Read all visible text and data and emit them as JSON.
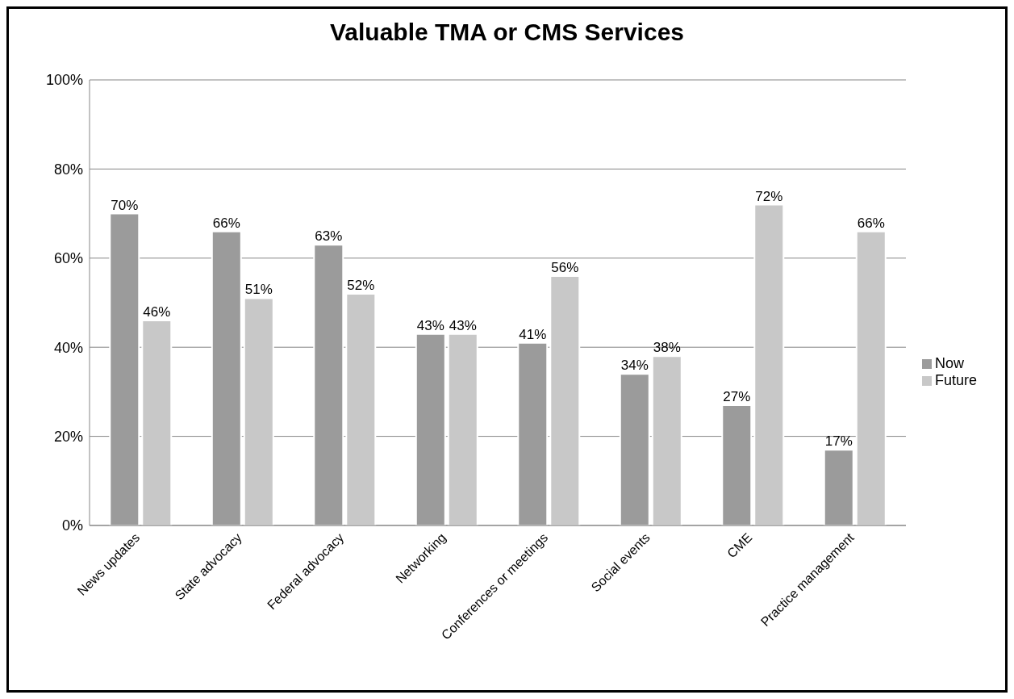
{
  "chart_data": {
    "type": "bar",
    "title": "Valuable TMA or CMS Services",
    "categories": [
      "News updates",
      "State advocacy",
      "Federal advocacy",
      "Networking",
      "Conferences or meetings",
      "Social events",
      "CME",
      "Practice management"
    ],
    "series": [
      {
        "name": "Now",
        "color": "#9b9b9b",
        "values": [
          70,
          66,
          63,
          43,
          41,
          34,
          27,
          17
        ],
        "value_labels": [
          "70%",
          "66%",
          "63%",
          "43%",
          "41%",
          "34%",
          "27%",
          "17%"
        ]
      },
      {
        "name": "Future",
        "color": "#c8c8c8",
        "values": [
          46,
          51,
          52,
          43,
          56,
          38,
          72,
          66
        ],
        "value_labels": [
          "46%",
          "51%",
          "52%",
          "43%",
          "56%",
          "38%",
          "72%",
          "66%"
        ]
      }
    ],
    "ylim": [
      0,
      100
    ],
    "yticks": [
      {
        "value": 0,
        "label": "0%"
      },
      {
        "value": 20,
        "label": "20%"
      },
      {
        "value": 40,
        "label": "40%"
      },
      {
        "value": 60,
        "label": "60%"
      },
      {
        "value": 80,
        "label": "80%"
      },
      {
        "value": 100,
        "label": "100%"
      }
    ],
    "grid": "y",
    "legend": "right"
  }
}
